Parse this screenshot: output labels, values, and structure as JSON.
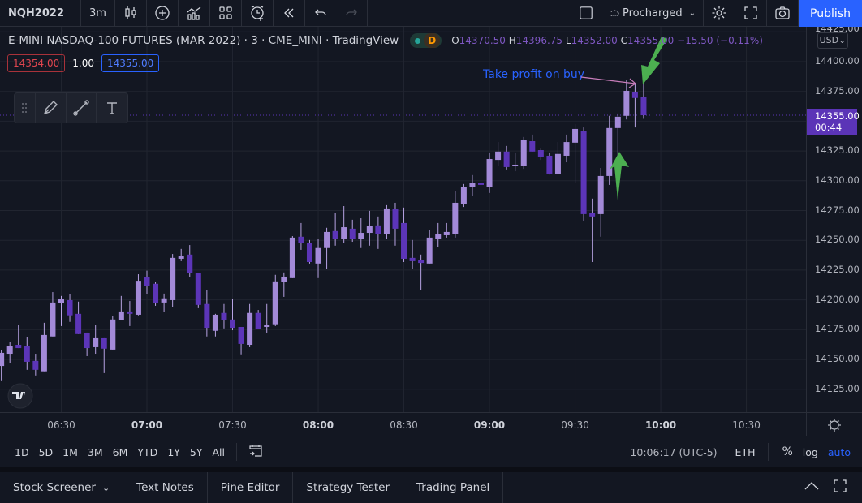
{
  "toolbar": {
    "symbol": "NQH2022",
    "interval": "3m",
    "icons": [
      "candles-icon",
      "add-symbol-icon",
      "indicators-icon",
      "layout-icon",
      "alert-icon",
      "replay-icon",
      "undo-icon",
      "redo-icon"
    ],
    "layout_name": "Procharged",
    "publish_label": "Publish"
  },
  "legend": {
    "title": "E-MINI NASDAQ-100 FUTURES (MAR 2022) · 3 · CME_MINI · TradingView",
    "badge": "D",
    "o_label": "O",
    "o": "14370.50",
    "h_label": "H",
    "h": "14396.75",
    "l_label": "L",
    "l": "14352.00",
    "c_label": "C",
    "c": "14355.00",
    "change": "−15.50 (−0.11%)",
    "sell_price": "14354.00",
    "qty": "1.00",
    "buy_price": "14355.00"
  },
  "annotation": {
    "text": "Take profit on buy",
    "color": "#2962ff"
  },
  "price_axis": {
    "currency": "USD",
    "ticks": [
      "14425.00",
      "14400.00",
      "14375.00",
      "14325.00",
      "14300.00",
      "14275.00",
      "14250.00",
      "14225.00",
      "14200.00",
      "14175.00",
      "14150.00",
      "14125.00"
    ],
    "current_price": "14355.00",
    "countdown": "00:44"
  },
  "time_axis": {
    "ticks": [
      {
        "t": "06:30",
        "bold": false
      },
      {
        "t": "07:00",
        "bold": true
      },
      {
        "t": "07:30",
        "bold": false
      },
      {
        "t": "08:00",
        "bold": true
      },
      {
        "t": "08:30",
        "bold": false
      },
      {
        "t": "09:00",
        "bold": true
      },
      {
        "t": "09:30",
        "bold": false
      },
      {
        "t": "10:00",
        "bold": true
      },
      {
        "t": "10:30",
        "bold": false
      }
    ]
  },
  "range_bar": {
    "ranges": [
      "1D",
      "5D",
      "1M",
      "3M",
      "6M",
      "YTD",
      "1Y",
      "5Y",
      "All"
    ],
    "clock": "10:06:17 (UTC-5)",
    "session": "ETH",
    "percent": "%",
    "log": "log",
    "auto": "auto"
  },
  "bottom_tabs": [
    "Stock Screener",
    "Text Notes",
    "Pine Editor",
    "Strategy Tester",
    "Trading Panel"
  ],
  "colors": {
    "up": "#a38ad8",
    "down": "#5c35b8",
    "background": "#131722",
    "grid": "#212530",
    "accent": "#2962ff",
    "arrow": "#4caf50"
  },
  "chart_data": {
    "type": "candlestick",
    "interval": "3m",
    "columns": [
      "time",
      "open",
      "high",
      "low",
      "close"
    ],
    "candles": [
      [
        "06:09",
        14144.5,
        14157.5,
        14131.75,
        14155.5
      ],
      [
        "06:12",
        14154.75,
        14165,
        14146.75,
        14161
      ],
      [
        "06:15",
        14162.25,
        14178.75,
        14159.5,
        14159.5
      ],
      [
        "06:18",
        14161,
        14168.5,
        14141.25,
        14148
      ],
      [
        "06:21",
        14148.75,
        14154.75,
        14136.5,
        14141.25
      ],
      [
        "06:24",
        14140,
        14180.75,
        14140,
        14170.5
      ],
      [
        "06:27",
        14169.25,
        14206.5,
        14169.25,
        14197.75
      ],
      [
        "06:30",
        14197,
        14203.25,
        14178,
        14200.5
      ],
      [
        "06:33",
        14199.75,
        14204.5,
        14181.5,
        14187
      ],
      [
        "06:36",
        14188.25,
        14198.5,
        14171.25,
        14171.25
      ],
      [
        "06:39",
        14172.5,
        14172.5,
        14152.75,
        14159.5
      ],
      [
        "06:42",
        14160.25,
        14178.75,
        14154.75,
        14167.75
      ],
      [
        "06:45",
        14167.75,
        14167.75,
        14138.5,
        14159
      ],
      [
        "06:48",
        14158.25,
        14186.25,
        14158.25,
        14183.5
      ],
      [
        "06:51",
        14182.75,
        14203.25,
        14182.75,
        14190.25
      ],
      [
        "06:54",
        14190.25,
        14199,
        14178,
        14188.25
      ],
      [
        "06:57",
        14187.5,
        14221.5,
        14187,
        14216
      ],
      [
        "07:00",
        14219,
        14224.5,
        14204.5,
        14211.5
      ],
      [
        "07:03",
        14213.5,
        14214.75,
        14195,
        14197
      ],
      [
        "07:06",
        14197.75,
        14205.25,
        14189.5,
        14201.25
      ],
      [
        "07:09",
        14199.75,
        14238.5,
        14194.25,
        14235.25
      ],
      [
        "07:12",
        14234.5,
        14242.75,
        14232.5,
        14236.5
      ],
      [
        "07:15",
        14238,
        14246,
        14219,
        14222.25
      ],
      [
        "07:18",
        14222.25,
        14222.25,
        14193,
        14195.75
      ],
      [
        "07:21",
        14196.5,
        14208.5,
        14169.25,
        14176.5
      ],
      [
        "07:24",
        14174,
        14188.25,
        14169.25,
        14187.5
      ],
      [
        "07:27",
        14189,
        14196.5,
        14176,
        14182.75
      ],
      [
        "07:30",
        14183.5,
        14200.5,
        14174.5,
        14176.5
      ],
      [
        "07:33",
        14177.25,
        14177.25,
        14154.25,
        14163
      ],
      [
        "07:36",
        14162.25,
        14196.5,
        14160.25,
        14189
      ],
      [
        "07:39",
        14189,
        14191.5,
        14175.25,
        14175.25
      ],
      [
        "07:42",
        14177.25,
        14196.5,
        14172.5,
        14178.75
      ],
      [
        "07:45",
        14179.5,
        14221,
        14178,
        14215.5
      ],
      [
        "07:48",
        14214.75,
        14223,
        14202.5,
        14219.5
      ],
      [
        "07:51",
        14218.25,
        14253.5,
        14218.25,
        14252.25
      ],
      [
        "07:54",
        14253,
        14264.5,
        14242,
        14247.5
      ],
      [
        "07:57",
        14247.5,
        14250.25,
        14230.5,
        14231.75
      ],
      [
        "08:00",
        14230.5,
        14251,
        14218.25,
        14243.5
      ],
      [
        "08:03",
        14243.5,
        14260.5,
        14225.75,
        14257
      ],
      [
        "08:06",
        14257.75,
        14272.75,
        14245.5,
        14251
      ],
      [
        "08:09",
        14251,
        14278.75,
        14247.5,
        14261
      ],
      [
        "08:12",
        14259.75,
        14267.25,
        14248.75,
        14251
      ],
      [
        "08:15",
        14251,
        14268.5,
        14243.5,
        14256.25
      ],
      [
        "08:18",
        14256.25,
        14274.75,
        14245.5,
        14261.75
      ],
      [
        "08:21",
        14262.5,
        14270,
        14242.75,
        14255
      ],
      [
        "08:24",
        14255,
        14279.5,
        14251,
        14276.75
      ],
      [
        "08:27",
        14276,
        14281.5,
        14245.5,
        14259.75
      ],
      [
        "08:30",
        14264.5,
        14277.5,
        14231.75,
        14234.5
      ],
      [
        "08:33",
        14235.25,
        14250.25,
        14225.75,
        14232.5
      ],
      [
        "08:36",
        14233.25,
        14238,
        14208.5,
        14231
      ],
      [
        "08:39",
        14230.5,
        14258.5,
        14230.5,
        14252.25
      ],
      [
        "08:42",
        14251,
        14264.5,
        14244,
        14255
      ],
      [
        "08:45",
        14254.25,
        14264.5,
        14252.25,
        14257
      ],
      [
        "08:48",
        14255.5,
        14291,
        14252.25,
        14281.5
      ],
      [
        "08:51",
        14280.75,
        14297.25,
        14278,
        14295
      ],
      [
        "08:54",
        14294.5,
        14304.75,
        14287,
        14298.5
      ],
      [
        "08:57",
        14298,
        14304,
        14290.5,
        14296.5
      ],
      [
        "09:00",
        14295,
        14323.75,
        14289.75,
        14318.25
      ],
      [
        "09:03",
        14317.5,
        14332.5,
        14312.75,
        14324.5
      ],
      [
        "09:06",
        14324.5,
        14329.25,
        14309.5,
        14311.5
      ],
      [
        "09:09",
        14312.25,
        14323.75,
        14308,
        14313.5
      ],
      [
        "09:12",
        14312.75,
        14336.75,
        14310,
        14334
      ],
      [
        "09:15",
        14333.25,
        14338.75,
        14324.5,
        14324.5
      ],
      [
        "09:18",
        14325.75,
        14327,
        14317.5,
        14320.25
      ],
      [
        "09:21",
        14321,
        14323.75,
        14305.25,
        14306
      ],
      [
        "09:24",
        14306,
        14332.5,
        14306,
        14322.5
      ],
      [
        "09:27",
        14321,
        14338.75,
        14315.5,
        14332.5
      ],
      [
        "09:30",
        14332,
        14347.5,
        14297.75,
        14343.5
      ],
      [
        "09:33",
        14342,
        14344.75,
        14266.5,
        14272
      ],
      [
        "09:36",
        14272.75,
        14285,
        14231.75,
        14270
      ],
      [
        "09:39",
        14272,
        14310.75,
        14253,
        14304
      ],
      [
        "09:42",
        14304,
        14354.5,
        14296.5,
        14344.25
      ],
      [
        "09:45",
        14344.25,
        14356.5,
        14312.25,
        14353.75
      ],
      [
        "09:48",
        14354.5,
        14385,
        14351.5,
        14375.5
      ],
      [
        "09:51",
        14374.75,
        14382.25,
        14344.75,
        14369.5
      ],
      [
        "09:54",
        14370.5,
        14396.75,
        14352,
        14355
      ]
    ]
  }
}
